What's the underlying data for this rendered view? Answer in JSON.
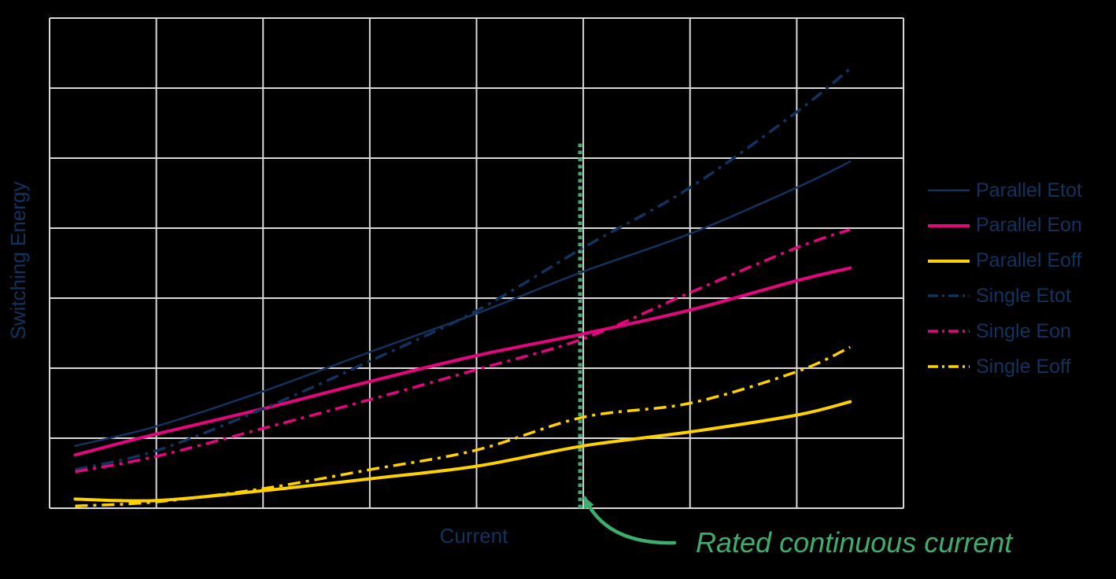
{
  "colors": {
    "background": "#000000",
    "grid": "#D9D9D9",
    "navy": "#11335E",
    "magenta": "#E5067F",
    "yellow": "#FFD100",
    "green": "#3FAD6E"
  },
  "chart_data": {
    "type": "line",
    "title": "",
    "xlabel": "Current",
    "ylabel": "Switching Energy",
    "xlim": [
      0,
      8
    ],
    "ylim": [
      0,
      7
    ],
    "grid": {
      "columns": 8,
      "rows": 7,
      "visible": true,
      "color": "#D9D9D9"
    },
    "axis_tick_labels": "none shown (qualitative axes in grid units)",
    "legend_position": "right",
    "x": [
      0.24,
      1.0,
      2.0,
      3.0,
      4.0,
      5.0,
      6.0,
      7.0,
      7.5
    ],
    "series": [
      {
        "name": "Parallel Etot",
        "color": "#11335E",
        "style": "solid",
        "width": 2.5,
        "y": [
          0.89,
          1.17,
          1.67,
          2.23,
          2.78,
          3.38,
          3.92,
          4.58,
          4.95
        ]
      },
      {
        "name": "Parallel Eon",
        "color": "#E5067F",
        "style": "solid",
        "width": 4,
        "y": [
          0.76,
          1.06,
          1.42,
          1.81,
          2.18,
          2.49,
          2.83,
          3.25,
          3.43
        ]
      },
      {
        "name": "Parallel Eoff",
        "color": "#FFD100",
        "style": "solid",
        "width": 4,
        "y": [
          0.13,
          0.11,
          0.25,
          0.42,
          0.6,
          0.89,
          1.09,
          1.33,
          1.52
        ]
      },
      {
        "name": "Single Etot",
        "color": "#11335E",
        "style": "dashdot",
        "width": 3.5,
        "y": [
          0.55,
          0.82,
          1.42,
          2.1,
          2.82,
          3.72,
          4.58,
          5.66,
          6.28
        ]
      },
      {
        "name": "Single Eon",
        "color": "#E5067F",
        "style": "dashdot",
        "width": 3.5,
        "y": [
          0.52,
          0.74,
          1.14,
          1.55,
          1.98,
          2.42,
          3.08,
          3.72,
          3.98
        ]
      },
      {
        "name": "Single Eoff",
        "color": "#FFD100",
        "style": "dashdot",
        "width": 3.5,
        "y": [
          0.03,
          0.09,
          0.28,
          0.55,
          0.83,
          1.3,
          1.5,
          1.95,
          2.3
        ]
      }
    ],
    "annotation": {
      "label": "Rated continuous current",
      "x": 4.97,
      "y_from": 0,
      "y_to": 5.22,
      "line_style": "dotted",
      "color": "#3FAD6E"
    }
  }
}
